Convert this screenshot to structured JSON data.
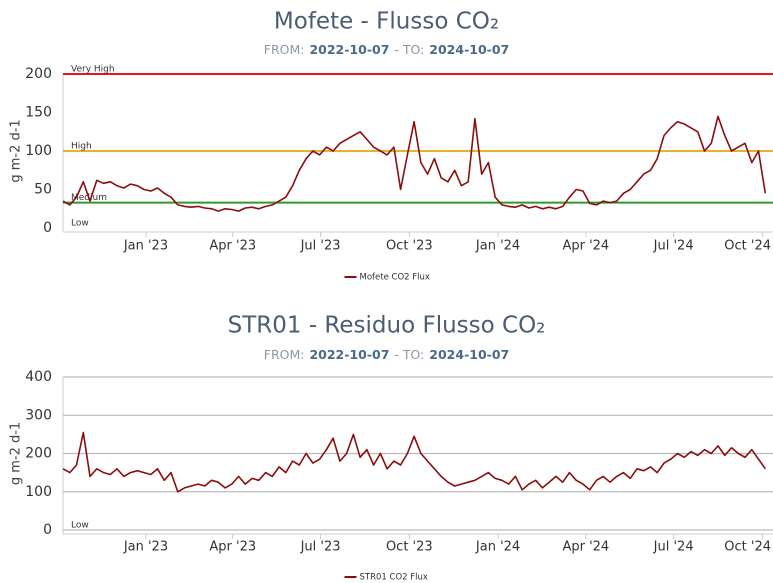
{
  "chart_data": [
    {
      "type": "line",
      "title": "Mofete - Flusso CO₂",
      "subtitle": [
        "FROM:",
        "2022-10-07",
        "-",
        "TO:",
        "2024-10-07"
      ],
      "y_label": "g m-2 d-1",
      "ylim": [
        0,
        200
      ],
      "yticks": [
        0,
        50,
        100,
        150,
        200
      ],
      "grid": false,
      "xlim": [
        "2022-10-07",
        "2024-10-12"
      ],
      "xticks": [
        {
          "value": "2023-01-01",
          "label": "Jan '23"
        },
        {
          "value": "2023-04-01",
          "label": "Apr '23"
        },
        {
          "value": "2023-07-01",
          "label": "Jul '23"
        },
        {
          "value": "2023-10-01",
          "label": "Oct '23"
        },
        {
          "value": "2024-01-01",
          "label": "Jan '24"
        },
        {
          "value": "2024-04-01",
          "label": "Apr '24"
        },
        {
          "value": "2024-07-01",
          "label": "Jul '24"
        },
        {
          "value": "2024-10-01",
          "label": "Oct '24"
        }
      ],
      "thresholds": [
        {
          "label": "Very High",
          "value": 200,
          "color": "#e8161b"
        },
        {
          "label": "High",
          "value": 100,
          "color": "#e8b22a"
        },
        {
          "label": "Medium",
          "value": 33,
          "color": "#2e9a2e"
        },
        {
          "label": "Low",
          "value": 0
        }
      ],
      "x": [
        "2022-10-07",
        "2022-10-14",
        "2022-10-21",
        "2022-10-28",
        "2022-11-04",
        "2022-11-11",
        "2022-11-18",
        "2022-11-25",
        "2022-12-02",
        "2022-12-09",
        "2022-12-16",
        "2022-12-23",
        "2022-12-30",
        "2023-01-06",
        "2023-01-13",
        "2023-01-20",
        "2023-01-27",
        "2023-02-03",
        "2023-02-10",
        "2023-02-17",
        "2023-02-24",
        "2023-03-03",
        "2023-03-10",
        "2023-03-17",
        "2023-03-24",
        "2023-03-31",
        "2023-04-07",
        "2023-04-14",
        "2023-04-21",
        "2023-04-28",
        "2023-05-05",
        "2023-05-12",
        "2023-05-19",
        "2023-05-26",
        "2023-06-02",
        "2023-06-09",
        "2023-06-16",
        "2023-06-23",
        "2023-06-30",
        "2023-07-07",
        "2023-07-14",
        "2023-07-21",
        "2023-07-28",
        "2023-08-04",
        "2023-08-11",
        "2023-08-18",
        "2023-08-25",
        "2023-09-01",
        "2023-09-08",
        "2023-09-15",
        "2023-09-22",
        "2023-09-29",
        "2023-10-06",
        "2023-10-13",
        "2023-10-20",
        "2023-10-27",
        "2023-11-03",
        "2023-11-10",
        "2023-11-17",
        "2023-11-24",
        "2023-12-01",
        "2023-12-08",
        "2023-12-15",
        "2023-12-22",
        "2023-12-29",
        "2024-01-05",
        "2024-01-12",
        "2024-01-19",
        "2024-01-26",
        "2024-02-02",
        "2024-02-09",
        "2024-02-16",
        "2024-02-23",
        "2024-03-01",
        "2024-03-08",
        "2024-03-15",
        "2024-03-22",
        "2024-03-29",
        "2024-04-05",
        "2024-04-12",
        "2024-04-19",
        "2024-04-26",
        "2024-05-03",
        "2024-05-10",
        "2024-05-17",
        "2024-05-24",
        "2024-05-31",
        "2024-06-07",
        "2024-06-14",
        "2024-06-21",
        "2024-06-28",
        "2024-07-05",
        "2024-07-12",
        "2024-07-19",
        "2024-07-26",
        "2024-08-02",
        "2024-08-09",
        "2024-08-16",
        "2024-08-23",
        "2024-08-30",
        "2024-09-06",
        "2024-09-13",
        "2024-09-20",
        "2024-09-27",
        "2024-10-04"
      ],
      "series": [
        {
          "name": "Mofete CO2 Flux",
          "color": "#8b0e0e",
          "values": [
            35,
            30,
            40,
            60,
            35,
            62,
            58,
            60,
            55,
            52,
            57,
            55,
            50,
            48,
            52,
            45,
            40,
            30,
            28,
            27,
            28,
            26,
            25,
            22,
            25,
            24,
            22,
            26,
            27,
            25,
            28,
            30,
            35,
            40,
            55,
            75,
            90,
            100,
            95,
            105,
            100,
            110,
            115,
            120,
            125,
            115,
            105,
            100,
            95,
            105,
            50,
            95,
            138,
            85,
            70,
            90,
            65,
            60,
            75,
            55,
            60,
            142,
            70,
            85,
            40,
            30,
            28,
            27,
            30,
            26,
            28,
            25,
            27,
            25,
            28,
            40,
            50,
            48,
            32,
            30,
            35,
            33,
            35,
            45,
            50,
            60,
            70,
            75,
            90,
            120,
            130,
            138,
            135,
            130,
            125,
            100,
            110,
            145,
            120,
            100,
            105,
            110,
            85,
            100,
            45
          ]
        }
      ]
    },
    {
      "type": "line",
      "title": "STR01 - Residuo Flusso CO₂",
      "subtitle": [
        "FROM:",
        "2022-10-07",
        "-",
        "TO:",
        "2024-10-07"
      ],
      "y_label": "g m-2 d-1",
      "ylim": [
        0,
        400
      ],
      "yticks": [
        0,
        100,
        200,
        300,
        400
      ],
      "grid": true,
      "xlim": [
        "2022-10-07",
        "2024-10-12"
      ],
      "xticks": [
        {
          "value": "2023-01-01",
          "label": "Jan '23"
        },
        {
          "value": "2023-04-01",
          "label": "Apr '23"
        },
        {
          "value": "2023-07-01",
          "label": "Jul '23"
        },
        {
          "value": "2023-10-01",
          "label": "Oct '23"
        },
        {
          "value": "2024-01-01",
          "label": "Jan '24"
        },
        {
          "value": "2024-04-01",
          "label": "Apr '24"
        },
        {
          "value": "2024-07-01",
          "label": "Jul '24"
        },
        {
          "value": "2024-10-01",
          "label": "Oct '24"
        }
      ],
      "thresholds": [
        {
          "label": "Low",
          "value": 0
        }
      ],
      "x": [
        "2022-10-07",
        "2022-10-14",
        "2022-10-21",
        "2022-10-28",
        "2022-11-04",
        "2022-11-11",
        "2022-11-18",
        "2022-11-25",
        "2022-12-02",
        "2022-12-09",
        "2022-12-16",
        "2022-12-23",
        "2022-12-30",
        "2023-01-06",
        "2023-01-13",
        "2023-01-20",
        "2023-01-27",
        "2023-02-03",
        "2023-02-10",
        "2023-02-17",
        "2023-02-24",
        "2023-03-03",
        "2023-03-10",
        "2023-03-17",
        "2023-03-24",
        "2023-03-31",
        "2023-04-07",
        "2023-04-14",
        "2023-04-21",
        "2023-04-28",
        "2023-05-05",
        "2023-05-12",
        "2023-05-19",
        "2023-05-26",
        "2023-06-02",
        "2023-06-09",
        "2023-06-16",
        "2023-06-23",
        "2023-06-30",
        "2023-07-07",
        "2023-07-14",
        "2023-07-21",
        "2023-07-28",
        "2023-08-04",
        "2023-08-11",
        "2023-08-18",
        "2023-08-25",
        "2023-09-01",
        "2023-09-08",
        "2023-09-15",
        "2023-09-22",
        "2023-09-29",
        "2023-10-06",
        "2023-10-13",
        "2023-10-20",
        "2023-10-27",
        "2023-11-03",
        "2023-11-10",
        "2023-11-17",
        "2023-11-24",
        "2023-12-01",
        "2023-12-08",
        "2023-12-15",
        "2023-12-22",
        "2023-12-29",
        "2024-01-05",
        "2024-01-12",
        "2024-01-19",
        "2024-01-26",
        "2024-02-02",
        "2024-02-09",
        "2024-02-16",
        "2024-02-23",
        "2024-03-01",
        "2024-03-08",
        "2024-03-15",
        "2024-03-22",
        "2024-03-29",
        "2024-04-05",
        "2024-04-12",
        "2024-04-19",
        "2024-04-26",
        "2024-05-03",
        "2024-05-10",
        "2024-05-17",
        "2024-05-24",
        "2024-05-31",
        "2024-06-07",
        "2024-06-14",
        "2024-06-21",
        "2024-06-28",
        "2024-07-05",
        "2024-07-12",
        "2024-07-19",
        "2024-07-26",
        "2024-08-02",
        "2024-08-09",
        "2024-08-16",
        "2024-08-23",
        "2024-08-30",
        "2024-09-06",
        "2024-09-13",
        "2024-09-20",
        "2024-09-27",
        "2024-10-04"
      ],
      "series": [
        {
          "name": "STR01 CO2 Flux",
          "color": "#8b0e0e",
          "values": [
            160,
            150,
            170,
            255,
            140,
            160,
            150,
            145,
            160,
            140,
            150,
            155,
            150,
            145,
            160,
            130,
            150,
            100,
            110,
            115,
            120,
            115,
            130,
            125,
            110,
            120,
            140,
            120,
            135,
            130,
            150,
            140,
            165,
            150,
            180,
            170,
            200,
            175,
            185,
            210,
            240,
            180,
            200,
            250,
            190,
            210,
            170,
            200,
            160,
            180,
            170,
            200,
            245,
            200,
            180,
            160,
            140,
            125,
            115,
            120,
            125,
            130,
            140,
            150,
            135,
            130,
            120,
            140,
            105,
            120,
            130,
            110,
            125,
            140,
            125,
            150,
            130,
            120,
            105,
            130,
            140,
            125,
            140,
            150,
            135,
            160,
            155,
            165,
            150,
            175,
            185,
            200,
            190,
            205,
            195,
            210,
            200,
            220,
            195,
            215,
            200,
            190,
            210,
            185,
            160
          ]
        }
      ]
    }
  ]
}
